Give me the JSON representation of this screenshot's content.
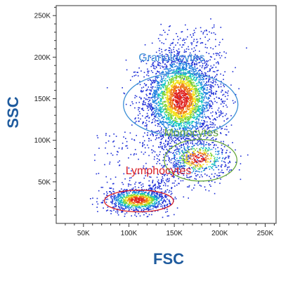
{
  "chart_data": {
    "type": "scatter",
    "title": "",
    "xlabel": "FSC",
    "ylabel": "SSC",
    "xlim": [
      20000,
      262000
    ],
    "ylim": [
      0,
      262000
    ],
    "x_ticks": [
      50000,
      100000,
      150000,
      200000,
      250000
    ],
    "y_ticks": [
      50000,
      100000,
      150000,
      200000,
      250000
    ],
    "x_tick_labels": [
      "50K",
      "100K",
      "150K",
      "200K",
      "250K"
    ],
    "y_tick_labels": [
      "50K",
      "100K",
      "150K",
      "200K",
      "250K"
    ],
    "grid": false,
    "legend": "none",
    "colormap": [
      "#1a2bd6",
      "#1f7fe0",
      "#17c7c0",
      "#7fd636",
      "#f5e01c",
      "#f07a14",
      "#e0231e"
    ],
    "populations": [
      {
        "name": "Granulocytes",
        "center": [
          157000,
          150000
        ],
        "spread": [
          20000,
          28000
        ],
        "count": 3200
      },
      {
        "name": "Monocytes",
        "center": [
          176000,
          78000
        ],
        "spread": [
          18000,
          12000
        ],
        "count": 520
      },
      {
        "name": "Lymphocytes",
        "center": [
          110000,
          28000
        ],
        "spread": [
          17000,
          7000
        ],
        "count": 1000
      }
    ],
    "gates": [
      {
        "label": "Granulocytes",
        "color": "#3b8ed6",
        "center": [
          157000,
          143000
        ],
        "radii": [
          63000,
          38000
        ]
      },
      {
        "label": "Monocytes",
        "color": "#68a83c",
        "center": [
          179000,
          76000
        ],
        "radii": [
          40000,
          25000
        ]
      },
      {
        "label": "Lymphocytes",
        "color": "#d81f26",
        "center": [
          111000,
          27000
        ],
        "radii": [
          38000,
          13000
        ]
      }
    ]
  }
}
